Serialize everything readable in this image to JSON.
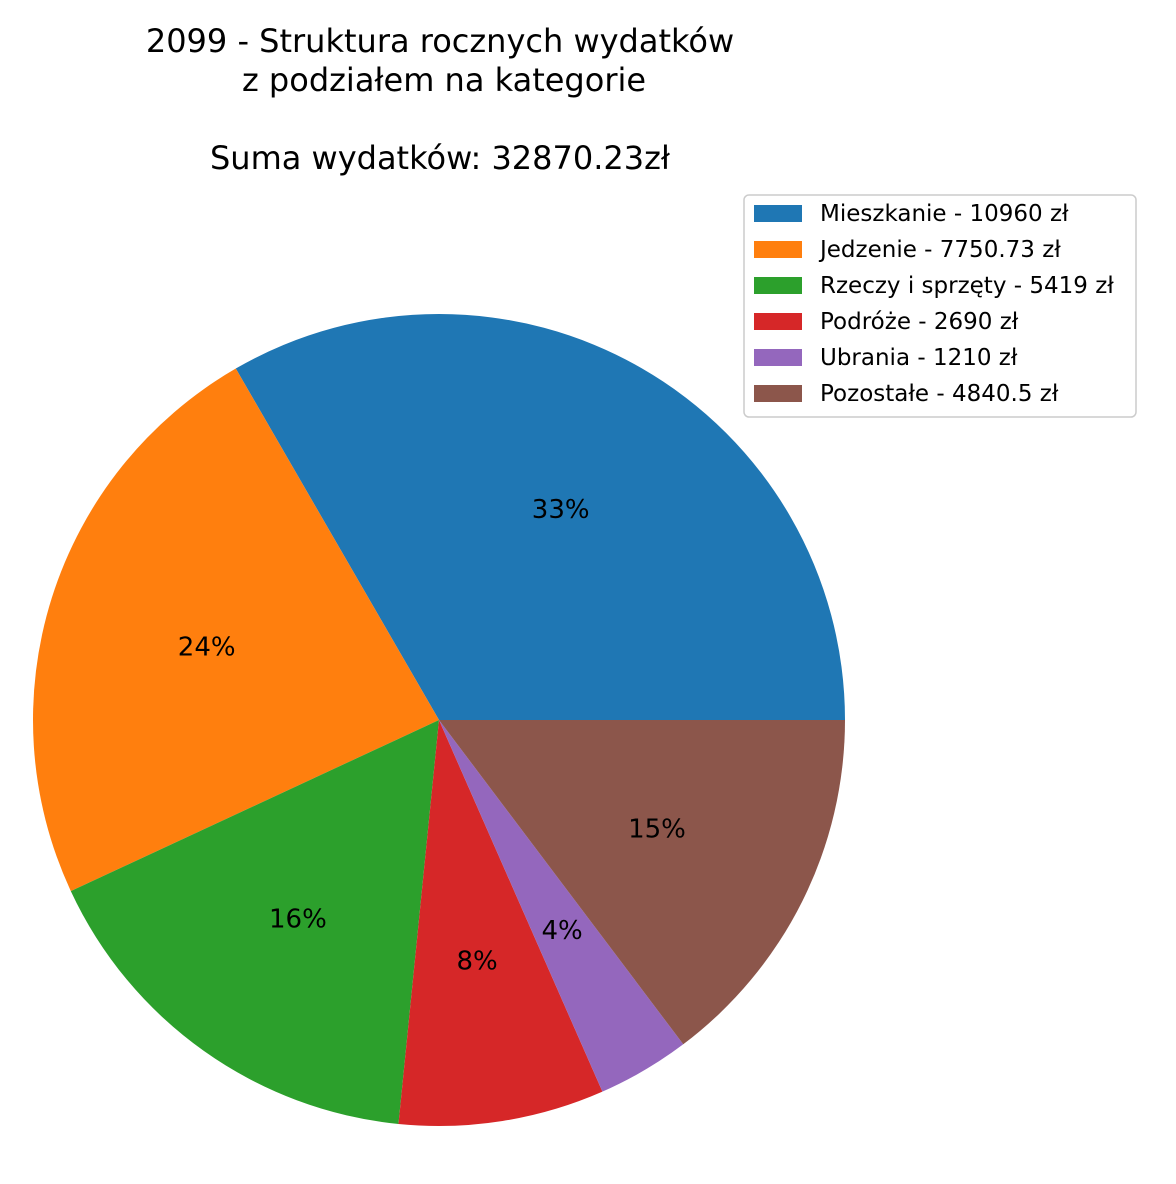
{
  "chart_data": {
    "type": "pie",
    "title_lines": [
      "2099 - Struktura rocznych wydatków",
      "z podziałem na kategorie",
      "",
      "Suma wydatków: 32870.23zł"
    ],
    "categories": [
      "Mieszkanie",
      "Jedzenie",
      "Rzeczy i sprzęty",
      "Podróże",
      "Ubrania",
      "Pozostałe"
    ],
    "values": [
      10960,
      7750.73,
      5419,
      2690,
      1210,
      4840.5
    ],
    "percent_labels": [
      "33%",
      "24%",
      "16%",
      "8%",
      "4%",
      "15%"
    ],
    "legend_entries": [
      "Mieszkanie - 10960 zł",
      "Jedzenie - 7750.73 zł",
      "Rzeczy i sprzęty - 5419 zł",
      "Podróże - 2690 zł",
      "Ubrania - 1210 zł",
      "Pozostałe - 4840.5 zł"
    ],
    "colors": [
      "#1f77b4",
      "#ff7f0e",
      "#2ca02c",
      "#d62728",
      "#9467bd",
      "#8c564b"
    ],
    "legend_placement": "top-right",
    "start_angle_deg": 0,
    "direction": "counterclockwise"
  }
}
